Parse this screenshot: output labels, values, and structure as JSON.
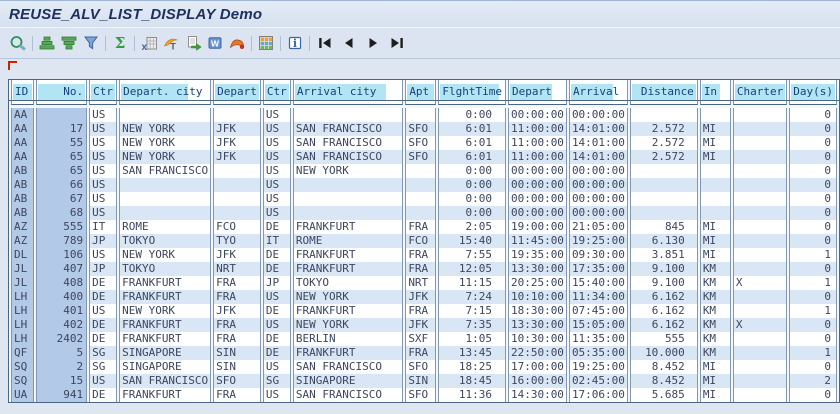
{
  "header": {
    "title": "REUSE_ALV_LIST_DISPLAY Demo"
  },
  "toolbar": {
    "buttons": [
      {
        "name": "choose-detail",
        "icon": "magnifier-icon"
      },
      {
        "name": "sort-ascending",
        "icon": "sort-ascending-icon"
      },
      {
        "name": "sort-descending",
        "icon": "sort-descending-icon"
      },
      {
        "name": "set-filter",
        "icon": "filter-icon"
      },
      {
        "name": "total",
        "icon": "sigma-icon"
      },
      {
        "name": "export-spreadsheet",
        "icon": "spreadsheet-icon"
      },
      {
        "name": "word-processing",
        "icon": "word-processing-icon"
      },
      {
        "name": "local-file",
        "icon": "local-file-icon"
      },
      {
        "name": "mail-recipient",
        "icon": "mail-icon"
      },
      {
        "name": "abc-analysis",
        "icon": "abc-analysis-icon"
      },
      {
        "name": "choose-layout",
        "icon": "layout-grid-icon"
      },
      {
        "name": "info",
        "icon": "info-icon"
      },
      {
        "name": "first-page",
        "icon": "first-page-icon"
      },
      {
        "name": "previous-page",
        "icon": "previous-page-icon"
      },
      {
        "name": "next-page",
        "icon": "next-page-icon"
      },
      {
        "name": "last-page",
        "icon": "last-page-icon"
      }
    ]
  },
  "colors": {
    "header_highlight": "#b2e5f3",
    "key_column_blue": "#b3c9e8",
    "row_stripe_blue": "#d9e6f5",
    "header_text": "#16407c",
    "title_text": "#1c2f5e",
    "list_marker_red": "#cc2200"
  },
  "table": {
    "columns": [
      {
        "label": "ID",
        "halign": "left",
        "valign": "left",
        "key": true
      },
      {
        "label": "No.",
        "halign": "right",
        "valign": "right",
        "key": true
      },
      {
        "label": "Ctr",
        "halign": "left",
        "valign": "left",
        "key": false
      },
      {
        "label": "Depart. city",
        "halign": "left",
        "valign": "left",
        "key": false
      },
      {
        "label": "Depart",
        "halign": "left",
        "valign": "left",
        "key": false
      },
      {
        "label": "Ctr",
        "halign": "left",
        "valign": "left",
        "key": false
      },
      {
        "label": "Arrival city",
        "halign": "left",
        "valign": "left",
        "key": false
      },
      {
        "label": "Apt",
        "halign": "left",
        "valign": "left",
        "key": false
      },
      {
        "label": "FlghtTime",
        "halign": "left",
        "valign": "right",
        "key": false
      },
      {
        "label": "Depart",
        "halign": "left",
        "valign": "left",
        "key": false
      },
      {
        "label": "Arrival",
        "halign": "left",
        "valign": "left",
        "key": false
      },
      {
        "label": "Distance",
        "halign": "right",
        "valign": "right",
        "key": false
      },
      {
        "label": "In",
        "halign": "left",
        "valign": "left",
        "key": false
      },
      {
        "label": "Charter",
        "halign": "left",
        "valign": "left",
        "key": false
      },
      {
        "label": "Day(s)",
        "halign": "left",
        "valign": "right",
        "key": false
      }
    ],
    "rows": [
      [
        "AA",
        "",
        "US",
        "",
        "",
        "US",
        "",
        "",
        "0:00",
        "00:00:00",
        "00:00:00",
        "",
        "",
        "",
        "0"
      ],
      [
        "AA",
        "17",
        "US",
        "NEW YORK",
        "JFK",
        "US",
        "SAN FRANCISCO",
        "SFO",
        "6:01",
        "11:00:00",
        "14:01:00",
        "2.572",
        "MI",
        "",
        "0"
      ],
      [
        "AA",
        "55",
        "US",
        "NEW YORK",
        "JFK",
        "US",
        "SAN FRANCISCO",
        "SFO",
        "6:01",
        "11:00:00",
        "14:01:00",
        "2.572",
        "MI",
        "",
        "0"
      ],
      [
        "AA",
        "65",
        "US",
        "NEW YORK",
        "JFK",
        "US",
        "SAN FRANCISCO",
        "SFO",
        "6:01",
        "11:00:00",
        "14:01:00",
        "2.572",
        "MI",
        "",
        "0"
      ],
      [
        "AB",
        "65",
        "US",
        "SAN FRANCISCO",
        "",
        "US",
        "NEW YORK",
        "",
        "0:00",
        "00:00:00",
        "00:00:00",
        "",
        "",
        "",
        "0"
      ],
      [
        "AB",
        "66",
        "US",
        "",
        "",
        "US",
        "",
        "",
        "0:00",
        "00:00:00",
        "00:00:00",
        "",
        "",
        "",
        "0"
      ],
      [
        "AB",
        "67",
        "US",
        "",
        "",
        "US",
        "",
        "",
        "0:00",
        "00:00:00",
        "00:00:00",
        "",
        "",
        "",
        "0"
      ],
      [
        "AB",
        "68",
        "US",
        "",
        "",
        "US",
        "",
        "",
        "0:00",
        "00:00:00",
        "00:00:00",
        "",
        "",
        "",
        "0"
      ],
      [
        "AZ",
        "555",
        "IT",
        "ROME",
        "FCO",
        "DE",
        "FRANKFURT",
        "FRA",
        "2:05",
        "19:00:00",
        "21:05:00",
        "845",
        "MI",
        "",
        "0"
      ],
      [
        "AZ",
        "789",
        "JP",
        "TOKYO",
        "TYO",
        "IT",
        "ROME",
        "FCO",
        "15:40",
        "11:45:00",
        "19:25:00",
        "6.130",
        "MI",
        "",
        "0"
      ],
      [
        "DL",
        "106",
        "US",
        "NEW YORK",
        "JFK",
        "DE",
        "FRANKFURT",
        "FRA",
        "7:55",
        "19:35:00",
        "09:30:00",
        "3.851",
        "MI",
        "",
        "1"
      ],
      [
        "JL",
        "407",
        "JP",
        "TOKYO",
        "NRT",
        "DE",
        "FRANKFURT",
        "FRA",
        "12:05",
        "13:30:00",
        "17:35:00",
        "9.100",
        "KM",
        "",
        "0"
      ],
      [
        "JL",
        "408",
        "DE",
        "FRANKFURT",
        "FRA",
        "JP",
        "TOKYO",
        "NRT",
        "11:15",
        "20:25:00",
        "15:40:00",
        "9.100",
        "KM",
        "X",
        "1"
      ],
      [
        "LH",
        "400",
        "DE",
        "FRANKFURT",
        "FRA",
        "US",
        "NEW YORK",
        "JFK",
        "7:24",
        "10:10:00",
        "11:34:00",
        "6.162",
        "KM",
        "",
        "0"
      ],
      [
        "LH",
        "401",
        "US",
        "NEW YORK",
        "JFK",
        "DE",
        "FRANKFURT",
        "FRA",
        "7:15",
        "18:30:00",
        "07:45:00",
        "6.162",
        "KM",
        "",
        "1"
      ],
      [
        "LH",
        "402",
        "DE",
        "FRANKFURT",
        "FRA",
        "US",
        "NEW YORK",
        "JFK",
        "7:35",
        "13:30:00",
        "15:05:00",
        "6.162",
        "KM",
        "X",
        "0"
      ],
      [
        "LH",
        "2402",
        "DE",
        "FRANKFURT",
        "FRA",
        "DE",
        "BERLIN",
        "SXF",
        "1:05",
        "10:30:00",
        "11:35:00",
        "555",
        "KM",
        "",
        "0"
      ],
      [
        "QF",
        "5",
        "SG",
        "SINGAPORE",
        "SIN",
        "DE",
        "FRANKFURT",
        "FRA",
        "13:45",
        "22:50:00",
        "05:35:00",
        "10.000",
        "KM",
        "",
        "1"
      ],
      [
        "SQ",
        "2",
        "SG",
        "SINGAPORE",
        "SIN",
        "US",
        "SAN FRANCISCO",
        "SFO",
        "18:25",
        "17:00:00",
        "19:25:00",
        "8.452",
        "MI",
        "",
        "0"
      ],
      [
        "SQ",
        "15",
        "US",
        "SAN FRANCISCO",
        "SFO",
        "SG",
        "SINGAPORE",
        "SIN",
        "18:45",
        "16:00:00",
        "02:45:00",
        "8.452",
        "MI",
        "",
        "2"
      ],
      [
        "UA",
        "941",
        "DE",
        "FRANKFURT",
        "FRA",
        "US",
        "SAN FRANCISCO",
        "SFO",
        "11:36",
        "14:30:00",
        "17:06:00",
        "5.685",
        "MI",
        "",
        "0"
      ]
    ]
  }
}
